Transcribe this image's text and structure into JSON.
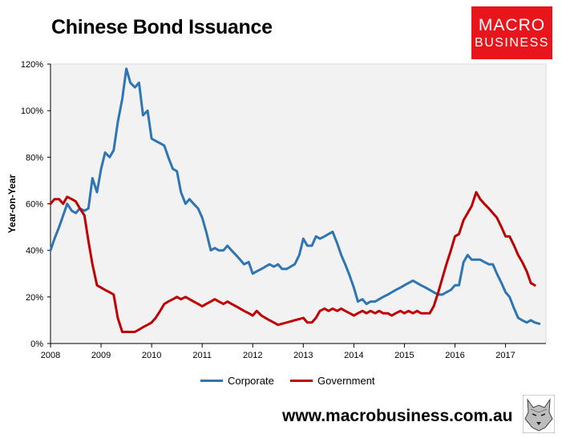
{
  "title": "Chinese Bond Issuance",
  "logo": {
    "line1": "MACRO",
    "line2": "BUSINESS",
    "color": "#e8161c"
  },
  "footer": {
    "url": "www.macrobusiness.com.au"
  },
  "chart_data": {
    "type": "line",
    "title": "Chinese Bond Issuance",
    "xlabel": "",
    "ylabel": "Year-on-Year",
    "ylim": [
      0,
      120
    ],
    "xlim": [
      2008,
      2017.8
    ],
    "y_ticks": [
      "0%",
      "20%",
      "40%",
      "60%",
      "80%",
      "100%",
      "120%"
    ],
    "x_ticks": [
      "2008",
      "2009",
      "2010",
      "2011",
      "2012",
      "2013",
      "2014",
      "2015",
      "2016",
      "2017"
    ],
    "grid": false,
    "plot_background": "#f2f2f2",
    "legend_position": "bottom",
    "series": [
      {
        "name": "Corporate",
        "color": "#2e75b6",
        "points": [
          [
            2008.0,
            40
          ],
          [
            2008.08,
            45
          ],
          [
            2008.17,
            50
          ],
          [
            2008.25,
            55
          ],
          [
            2008.33,
            60
          ],
          [
            2008.42,
            57
          ],
          [
            2008.5,
            56
          ],
          [
            2008.58,
            58
          ],
          [
            2008.67,
            57
          ],
          [
            2008.75,
            58
          ],
          [
            2008.83,
            71
          ],
          [
            2008.92,
            65
          ],
          [
            2009.0,
            75
          ],
          [
            2009.08,
            82
          ],
          [
            2009.17,
            80
          ],
          [
            2009.25,
            83
          ],
          [
            2009.33,
            95
          ],
          [
            2009.42,
            105
          ],
          [
            2009.5,
            118
          ],
          [
            2009.58,
            112
          ],
          [
            2009.67,
            110
          ],
          [
            2009.75,
            112
          ],
          [
            2009.83,
            98
          ],
          [
            2009.92,
            100
          ],
          [
            2010.0,
            88
          ],
          [
            2010.08,
            87
          ],
          [
            2010.17,
            86
          ],
          [
            2010.25,
            85
          ],
          [
            2010.33,
            80
          ],
          [
            2010.42,
            75
          ],
          [
            2010.5,
            74
          ],
          [
            2010.58,
            65
          ],
          [
            2010.67,
            60
          ],
          [
            2010.75,
            62
          ],
          [
            2010.83,
            60
          ],
          [
            2010.92,
            58
          ],
          [
            2011.0,
            54
          ],
          [
            2011.08,
            48
          ],
          [
            2011.17,
            40
          ],
          [
            2011.25,
            41
          ],
          [
            2011.33,
            40
          ],
          [
            2011.42,
            40
          ],
          [
            2011.5,
            42
          ],
          [
            2011.58,
            40
          ],
          [
            2011.67,
            38
          ],
          [
            2011.75,
            36
          ],
          [
            2011.83,
            34
          ],
          [
            2011.92,
            35
          ],
          [
            2012.0,
            30
          ],
          [
            2012.08,
            31
          ],
          [
            2012.17,
            32
          ],
          [
            2012.25,
            33
          ],
          [
            2012.33,
            34
          ],
          [
            2012.42,
            33
          ],
          [
            2012.5,
            34
          ],
          [
            2012.58,
            32
          ],
          [
            2012.67,
            32
          ],
          [
            2012.75,
            33
          ],
          [
            2012.83,
            34
          ],
          [
            2012.92,
            38
          ],
          [
            2013.0,
            45
          ],
          [
            2013.08,
            42
          ],
          [
            2013.17,
            42
          ],
          [
            2013.25,
            46
          ],
          [
            2013.33,
            45
          ],
          [
            2013.42,
            46
          ],
          [
            2013.5,
            47
          ],
          [
            2013.58,
            48
          ],
          [
            2013.67,
            43
          ],
          [
            2013.75,
            38
          ],
          [
            2013.83,
            34
          ],
          [
            2013.92,
            29
          ],
          [
            2014.0,
            24
          ],
          [
            2014.08,
            18
          ],
          [
            2014.17,
            19
          ],
          [
            2014.25,
            17
          ],
          [
            2014.33,
            18
          ],
          [
            2014.42,
            18
          ],
          [
            2014.5,
            19
          ],
          [
            2014.58,
            20
          ],
          [
            2014.67,
            21
          ],
          [
            2014.75,
            22
          ],
          [
            2014.83,
            23
          ],
          [
            2014.92,
            24
          ],
          [
            2015.0,
            25
          ],
          [
            2015.08,
            26
          ],
          [
            2015.17,
            27
          ],
          [
            2015.25,
            26
          ],
          [
            2015.33,
            25
          ],
          [
            2015.42,
            24
          ],
          [
            2015.5,
            23
          ],
          [
            2015.58,
            22
          ],
          [
            2015.67,
            21
          ],
          [
            2015.75,
            21
          ],
          [
            2015.83,
            22
          ],
          [
            2015.92,
            23
          ],
          [
            2016.0,
            25
          ],
          [
            2016.08,
            25
          ],
          [
            2016.17,
            35
          ],
          [
            2016.25,
            38
          ],
          [
            2016.33,
            36
          ],
          [
            2016.42,
            36
          ],
          [
            2016.5,
            36
          ],
          [
            2016.58,
            35
          ],
          [
            2016.67,
            34
          ],
          [
            2016.75,
            34
          ],
          [
            2016.83,
            30
          ],
          [
            2016.92,
            26
          ],
          [
            2017.0,
            22
          ],
          [
            2017.08,
            20
          ],
          [
            2017.17,
            15
          ],
          [
            2017.25,
            11
          ],
          [
            2017.33,
            10
          ],
          [
            2017.42,
            9
          ],
          [
            2017.5,
            10
          ],
          [
            2017.58,
            9
          ],
          [
            2017.67,
            8.5
          ]
        ]
      },
      {
        "name": "Government",
        "color": "#c00000",
        "points": [
          [
            2008.0,
            60
          ],
          [
            2008.08,
            62
          ],
          [
            2008.17,
            62
          ],
          [
            2008.25,
            60
          ],
          [
            2008.33,
            63
          ],
          [
            2008.42,
            62
          ],
          [
            2008.5,
            61
          ],
          [
            2008.58,
            58
          ],
          [
            2008.67,
            55
          ],
          [
            2008.75,
            44
          ],
          [
            2008.83,
            34
          ],
          [
            2008.92,
            25
          ],
          [
            2009.0,
            24
          ],
          [
            2009.08,
            23
          ],
          [
            2009.17,
            22
          ],
          [
            2009.25,
            21
          ],
          [
            2009.33,
            11
          ],
          [
            2009.42,
            5
          ],
          [
            2009.5,
            5
          ],
          [
            2009.58,
            5
          ],
          [
            2009.67,
            5
          ],
          [
            2009.75,
            6
          ],
          [
            2009.83,
            7
          ],
          [
            2009.92,
            8
          ],
          [
            2010.0,
            9
          ],
          [
            2010.08,
            11
          ],
          [
            2010.17,
            14
          ],
          [
            2010.25,
            17
          ],
          [
            2010.33,
            18
          ],
          [
            2010.42,
            19
          ],
          [
            2010.5,
            20
          ],
          [
            2010.58,
            19
          ],
          [
            2010.67,
            20
          ],
          [
            2010.75,
            19
          ],
          [
            2010.83,
            18
          ],
          [
            2010.92,
            17
          ],
          [
            2011.0,
            16
          ],
          [
            2011.08,
            17
          ],
          [
            2011.17,
            18
          ],
          [
            2011.25,
            19
          ],
          [
            2011.33,
            18
          ],
          [
            2011.42,
            17
          ],
          [
            2011.5,
            18
          ],
          [
            2011.58,
            17
          ],
          [
            2011.67,
            16
          ],
          [
            2011.75,
            15
          ],
          [
            2011.83,
            14
          ],
          [
            2011.92,
            13
          ],
          [
            2012.0,
            12
          ],
          [
            2012.08,
            14
          ],
          [
            2012.17,
            12
          ],
          [
            2012.25,
            11
          ],
          [
            2012.33,
            10
          ],
          [
            2012.42,
            9
          ],
          [
            2012.5,
            8
          ],
          [
            2012.58,
            8.5
          ],
          [
            2012.67,
            9
          ],
          [
            2012.75,
            9.5
          ],
          [
            2012.83,
            10
          ],
          [
            2012.92,
            10.5
          ],
          [
            2013.0,
            11
          ],
          [
            2013.08,
            9
          ],
          [
            2013.17,
            9
          ],
          [
            2013.25,
            11
          ],
          [
            2013.33,
            14
          ],
          [
            2013.42,
            15
          ],
          [
            2013.5,
            14
          ],
          [
            2013.58,
            15
          ],
          [
            2013.67,
            14
          ],
          [
            2013.75,
            15
          ],
          [
            2013.83,
            14
          ],
          [
            2013.92,
            13
          ],
          [
            2014.0,
            12
          ],
          [
            2014.08,
            13
          ],
          [
            2014.17,
            14
          ],
          [
            2014.25,
            13
          ],
          [
            2014.33,
            14
          ],
          [
            2014.42,
            13
          ],
          [
            2014.5,
            14
          ],
          [
            2014.58,
            13
          ],
          [
            2014.67,
            13
          ],
          [
            2014.75,
            12
          ],
          [
            2014.83,
            13
          ],
          [
            2014.92,
            14
          ],
          [
            2015.0,
            13
          ],
          [
            2015.08,
            14
          ],
          [
            2015.17,
            13
          ],
          [
            2015.25,
            14
          ],
          [
            2015.33,
            13
          ],
          [
            2015.42,
            13
          ],
          [
            2015.5,
            13
          ],
          [
            2015.58,
            16
          ],
          [
            2015.67,
            22
          ],
          [
            2015.75,
            28
          ],
          [
            2015.83,
            34
          ],
          [
            2015.92,
            40
          ],
          [
            2016.0,
            46
          ],
          [
            2016.08,
            47
          ],
          [
            2016.17,
            53
          ],
          [
            2016.25,
            56
          ],
          [
            2016.33,
            59
          ],
          [
            2016.42,
            65
          ],
          [
            2016.5,
            62
          ],
          [
            2016.58,
            60
          ],
          [
            2016.67,
            58
          ],
          [
            2016.75,
            56
          ],
          [
            2016.83,
            54
          ],
          [
            2016.92,
            50
          ],
          [
            2017.0,
            46
          ],
          [
            2017.08,
            46
          ],
          [
            2017.17,
            42
          ],
          [
            2017.25,
            38
          ],
          [
            2017.33,
            35
          ],
          [
            2017.42,
            31
          ],
          [
            2017.5,
            26
          ],
          [
            2017.58,
            25
          ]
        ]
      }
    ]
  }
}
